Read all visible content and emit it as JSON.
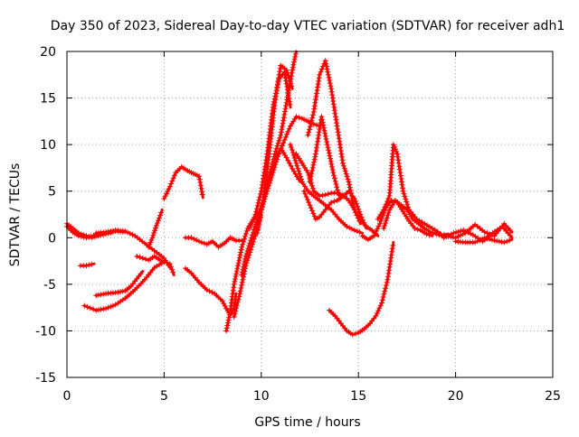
{
  "chart_data": {
    "type": "scatter",
    "title": "Day 350 of 2023, Sidereal Day-to-day VTEC variation (SDTVAR) for receiver adh1",
    "xlabel": "GPS time / hours",
    "ylabel": "SDTVAR / TECUs",
    "xlim": [
      0,
      25
    ],
    "ylim": [
      -15,
      20
    ],
    "xticks": [
      0,
      5,
      10,
      15,
      20,
      25
    ],
    "yticks": [
      -15,
      -10,
      -5,
      0,
      5,
      10,
      15,
      20
    ],
    "grid": true,
    "marker": "+",
    "color": "#ff0000",
    "series": [
      {
        "x": [
          0.0,
          0.3,
          0.6,
          1.0,
          1.3,
          1.6,
          2.0,
          2.4
        ],
        "y": [
          1.5,
          1.0,
          0.5,
          0.2,
          0.0,
          0.2,
          0.4,
          0.6
        ]
      },
      {
        "x": [
          0.0,
          0.3,
          0.6,
          1.0,
          1.5,
          2.0,
          2.5,
          3.0
        ],
        "y": [
          1.2,
          0.6,
          0.2,
          0.0,
          0.3,
          0.5,
          0.7,
          0.6
        ]
      },
      {
        "x": [
          1.5,
          2.0,
          2.5,
          3.0,
          3.5,
          4.0,
          4.5,
          5.0,
          5.3
        ],
        "y": [
          0.5,
          0.6,
          0.8,
          0.7,
          0.2,
          -0.6,
          -1.4,
          -2.2,
          -3.2
        ]
      },
      {
        "x": [
          0.7,
          1.0,
          1.4
        ],
        "y": [
          -3.0,
          -3.0,
          -2.8
        ]
      },
      {
        "x": [
          1.5,
          2.0,
          2.5,
          3.0,
          3.3,
          3.6,
          3.9
        ],
        "y": [
          -6.2,
          -6.0,
          -5.9,
          -5.7,
          -5.2,
          -4.4,
          -3.6
        ]
      },
      {
        "x": [
          0.9,
          1.5,
          2.0,
          2.5,
          3.0,
          3.5,
          4.0,
          4.5,
          5.0,
          5.3,
          5.5
        ],
        "y": [
          -7.3,
          -7.8,
          -7.6,
          -7.2,
          -6.5,
          -5.6,
          -4.5,
          -3.2,
          -2.6,
          -2.8,
          -4.0
        ]
      },
      {
        "x": [
          3.6,
          3.9,
          4.2,
          4.5,
          4.8,
          5.0
        ],
        "y": [
          -2.0,
          -2.2,
          -2.4,
          -2.0,
          -2.4,
          -2.6
        ]
      },
      {
        "x": [
          4.2,
          4.4,
          4.6,
          4.8,
          4.9
        ],
        "y": [
          -1.0,
          0.0,
          1.3,
          2.4,
          3.0
        ]
      },
      {
        "x": [
          5.0,
          5.3,
          5.6,
          5.9,
          6.2,
          6.5,
          6.8,
          7.0
        ],
        "y": [
          4.2,
          5.5,
          7.0,
          7.6,
          7.2,
          6.9,
          6.6,
          4.3
        ]
      },
      {
        "x": [
          6.1,
          6.4,
          6.8,
          7.2,
          7.6,
          8.0,
          8.2,
          8.4,
          8.6,
          8.7
        ],
        "y": [
          -3.3,
          -3.8,
          -4.8,
          -5.6,
          -6.0,
          -6.8,
          -7.6,
          -8.3,
          -7.6,
          -6.0
        ]
      },
      {
        "x": [
          6.1,
          6.4,
          6.8,
          7.2,
          7.5,
          7.8,
          8.1,
          8.4,
          8.7,
          9.0
        ],
        "y": [
          0.0,
          0.0,
          -0.4,
          -0.7,
          -0.4,
          -1.0,
          -0.6,
          0.0,
          -0.3,
          -0.3
        ]
      },
      {
        "x": [
          8.2,
          8.4,
          8.6,
          8.8,
          9.0,
          9.3,
          9.6,
          10.0
        ],
        "y": [
          -10.0,
          -8.0,
          -5.0,
          -3.0,
          -1.0,
          1.0,
          2.0,
          3.0
        ]
      },
      {
        "x": [
          8.6,
          8.9,
          9.2,
          9.5,
          9.8,
          10.0
        ],
        "y": [
          -8.5,
          -6.0,
          -3.0,
          -1.0,
          1.0,
          2.5
        ]
      },
      {
        "x": [
          9.0,
          9.2,
          9.5,
          9.8,
          10.1,
          10.4,
          10.7,
          11.0,
          11.3,
          11.6,
          12.0
        ],
        "y": [
          -4.0,
          -2.0,
          0.0,
          2.0,
          4.0,
          6.5,
          8.5,
          9.6,
          8.6,
          7.4,
          6.0
        ]
      },
      {
        "x": [
          9.4,
          9.7,
          10.0,
          10.3,
          10.6,
          10.9,
          11.2,
          11.5
        ],
        "y": [
          1.0,
          2.5,
          5.0,
          9.0,
          14.0,
          17.0,
          17.8,
          14.0
        ]
      },
      {
        "x": [
          9.8,
          10.1,
          10.4,
          10.7,
          11.0,
          11.3,
          11.6
        ],
        "y": [
          0.5,
          4.0,
          9.0,
          14.5,
          18.5,
          18.0,
          16.0
        ]
      },
      {
        "x": [
          10.0,
          10.3,
          10.6,
          10.9,
          11.2,
          11.5,
          11.8,
          12.1,
          12.4,
          12.7,
          13.0
        ],
        "y": [
          3.0,
          5.0,
          7.0,
          9.0,
          10.5,
          12.0,
          13.0,
          12.8,
          12.5,
          12.2,
          12.0
        ]
      },
      {
        "x": [
          10.4,
          10.7,
          11.0,
          11.3,
          11.6,
          11.8
        ],
        "y": [
          6.0,
          9.0,
          11.0,
          14.5,
          18.0,
          20.0
        ]
      },
      {
        "x": [
          11.5,
          11.8,
          12.1,
          12.4,
          12.7,
          13.0,
          13.3,
          13.6,
          14.0,
          14.4,
          14.8,
          15.2
        ],
        "y": [
          10.0,
          8.0,
          6.0,
          5.0,
          4.5,
          4.0,
          3.5,
          3.0,
          2.0,
          1.2,
          0.8,
          0.5
        ]
      },
      {
        "x": [
          12.2,
          12.5,
          12.8,
          13.0,
          13.3,
          13.6,
          13.9,
          14.2,
          14.5,
          14.8,
          15.1,
          15.4
        ],
        "y": [
          5.0,
          3.5,
          2.0,
          2.2,
          3.0,
          3.8,
          4.0,
          4.4,
          5.0,
          4.2,
          2.5,
          1.0
        ]
      },
      {
        "x": [
          11.8,
          12.1,
          12.4,
          12.7,
          13.0,
          13.3,
          13.6,
          13.9,
          14.2,
          14.5,
          14.8,
          15.1,
          15.4,
          15.7,
          16.0
        ],
        "y": [
          9.0,
          8.0,
          7.0,
          5.0,
          4.5,
          4.6,
          4.8,
          4.8,
          4.6,
          4.0,
          3.0,
          2.0,
          1.2,
          0.8,
          0.2
        ]
      },
      {
        "x": [
          12.4,
          12.7,
          13.0,
          13.3,
          13.6,
          13.9,
          14.2,
          14.5,
          14.8,
          15.1
        ],
        "y": [
          11.0,
          13.5,
          17.5,
          19.0,
          16.0,
          12.0,
          8.0,
          6.0,
          3.0,
          1.5
        ]
      },
      {
        "x": [
          12.5,
          12.8,
          13.1,
          13.4,
          13.7,
          14.0
        ],
        "y": [
          6.0,
          9.0,
          13.0,
          10.0,
          7.0,
          4.5
        ]
      },
      {
        "x": [
          13.5,
          13.8,
          14.1,
          14.4,
          14.7,
          15.0,
          15.3,
          15.6,
          15.9,
          16.2,
          16.5,
          16.8
        ],
        "y": [
          -7.8,
          -8.4,
          -9.2,
          -10.0,
          -10.4,
          -10.2,
          -9.8,
          -9.2,
          -8.4,
          -7.0,
          -4.5,
          -0.5
        ]
      },
      {
        "x": [
          15.2,
          15.5,
          15.8,
          16.1,
          16.4,
          16.7,
          17.0,
          17.3,
          17.6,
          17.9,
          18.2,
          18.5,
          18.8
        ],
        "y": [
          0.2,
          -0.2,
          0.2,
          1.5,
          3.2,
          4.0,
          3.8,
          2.8,
          1.8,
          1.0,
          0.8,
          0.4,
          0.2
        ]
      },
      {
        "x": [
          16.0,
          16.3,
          16.6,
          16.8,
          17.0,
          17.3,
          17.6,
          18.0,
          18.4,
          18.8,
          19.2
        ],
        "y": [
          2.0,
          3.0,
          4.5,
          10.0,
          9.0,
          5.0,
          3.0,
          2.0,
          1.5,
          1.0,
          0.5
        ]
      },
      {
        "x": [
          16.3,
          16.6,
          16.9,
          17.2,
          17.5,
          17.8,
          18.1,
          18.4,
          18.7,
          19.0,
          19.3,
          19.6
        ],
        "y": [
          1.0,
          3.0,
          4.0,
          3.5,
          3.0,
          2.0,
          1.5,
          1.0,
          0.6,
          0.4,
          0.2,
          0.4
        ]
      },
      {
        "x": [
          19.0,
          19.5,
          20.0,
          20.5,
          21.0,
          21.5,
          22.0,
          22.5,
          22.9
        ],
        "y": [
          0.5,
          0.2,
          0.0,
          0.5,
          1.4,
          0.6,
          0.2,
          1.5,
          0.6
        ]
      },
      {
        "x": [
          19.4,
          19.9,
          20.4,
          20.9,
          21.4,
          21.9,
          22.4,
          22.9
        ],
        "y": [
          0.0,
          0.5,
          0.8,
          0.3,
          -0.4,
          0.5,
          1.2,
          0.0
        ]
      },
      {
        "x": [
          20.0,
          20.5,
          21.0,
          21.5,
          22.0,
          22.5,
          22.9
        ],
        "y": [
          -0.4,
          -0.5,
          -0.5,
          0.0,
          -0.3,
          -0.5,
          -0.2
        ]
      }
    ]
  }
}
